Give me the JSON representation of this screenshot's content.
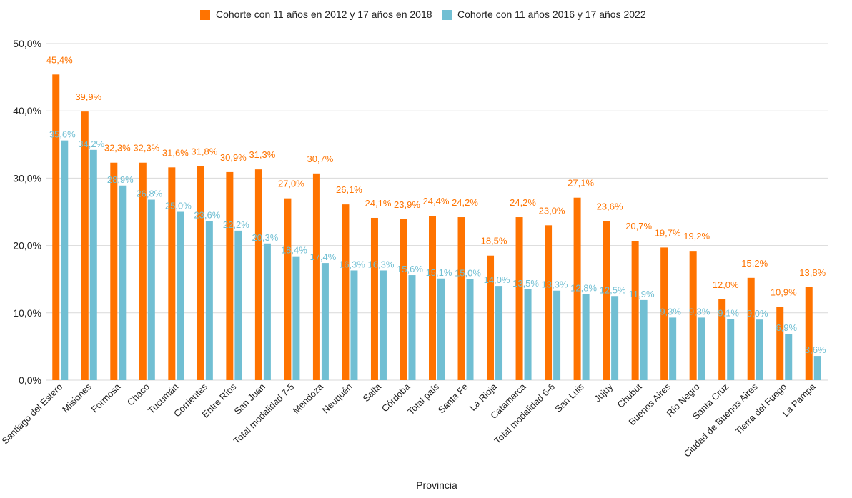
{
  "colors": {
    "series1": "#FF7300",
    "series2": "#71BFD3",
    "grid": "#D9D9D9",
    "text": "#222222"
  },
  "chart_data": {
    "type": "bar",
    "xlabel": "Provincia",
    "ylim": [
      0,
      50
    ],
    "yticks": [
      "0,0%",
      "10,0%",
      "20,0%",
      "30,0%",
      "40,0%",
      "50,0%"
    ],
    "grid": true,
    "legend": "top-center",
    "categories": [
      "Santiago del Estero",
      "Misiones",
      "Formosa",
      "Chaco",
      "Tucumán",
      "Corrientes",
      "Entre Ríos",
      "San Juan",
      "Total modalidad 7-5",
      "Mendoza",
      "Neuquén",
      "Salta",
      "Córdoba",
      "Total país",
      "Santa Fe",
      "La Rioja",
      "Catamarca",
      "Total modalidad 6-6",
      "San Luis",
      "Jujuy",
      "Chubut",
      "Buenos Aires",
      "Río Negro",
      "Santa Cruz",
      "Ciudad de Buenos Aires",
      "Tierra del Fuego",
      "La Pampa"
    ],
    "series": [
      {
        "name": "Cohorte con 11 años en 2012 y 17 años en 2018",
        "values": [
          45.4,
          39.9,
          32.3,
          32.3,
          31.6,
          31.8,
          30.9,
          31.3,
          27.0,
          30.7,
          26.1,
          24.1,
          23.9,
          24.4,
          24.2,
          18.5,
          24.2,
          23.0,
          27.1,
          23.6,
          20.7,
          19.7,
          19.2,
          12.0,
          15.2,
          10.9,
          13.8
        ],
        "labels": [
          "45,4%",
          "39,9%",
          "32,3%",
          "32,3%",
          "31,6%",
          "31,8%",
          "30,9%",
          "31,3%",
          "27,0%",
          "30,7%",
          "26,1%",
          "24,1%",
          "23,9%",
          "24,4%",
          "24,2%",
          "18,5%",
          "24,2%",
          "23,0%",
          "27,1%",
          "23,6%",
          "20,7%",
          "19,7%",
          "19,2%",
          "12,0%",
          "15,2%",
          "10,9%",
          "13,8%"
        ]
      },
      {
        "name": "Cohorte con 11 años 2016 y 17 años 2022",
        "values": [
          35.6,
          34.2,
          28.9,
          26.8,
          25.0,
          23.6,
          22.2,
          20.3,
          18.4,
          17.4,
          16.3,
          16.3,
          15.6,
          15.1,
          15.0,
          14.0,
          13.5,
          13.3,
          12.8,
          12.5,
          11.9,
          9.3,
          9.3,
          9.1,
          9.0,
          6.9,
          3.6
        ],
        "labels": [
          "35,6%",
          "34,2%",
          "28,9%",
          "26,8%",
          "25,0%",
          "23,6%",
          "22,2%",
          "20,3%",
          "18,4%",
          "17,4%",
          "16,3%",
          "16,3%",
          "15,6%",
          "15,1%",
          "15,0%",
          "14,0%",
          "13,5%",
          "13,3%",
          "12,8%",
          "12,5%",
          "11,9%",
          "9,3%",
          "9,3%",
          "9,1%",
          "9,0%",
          "6,9%",
          "3,6%"
        ]
      }
    ]
  }
}
